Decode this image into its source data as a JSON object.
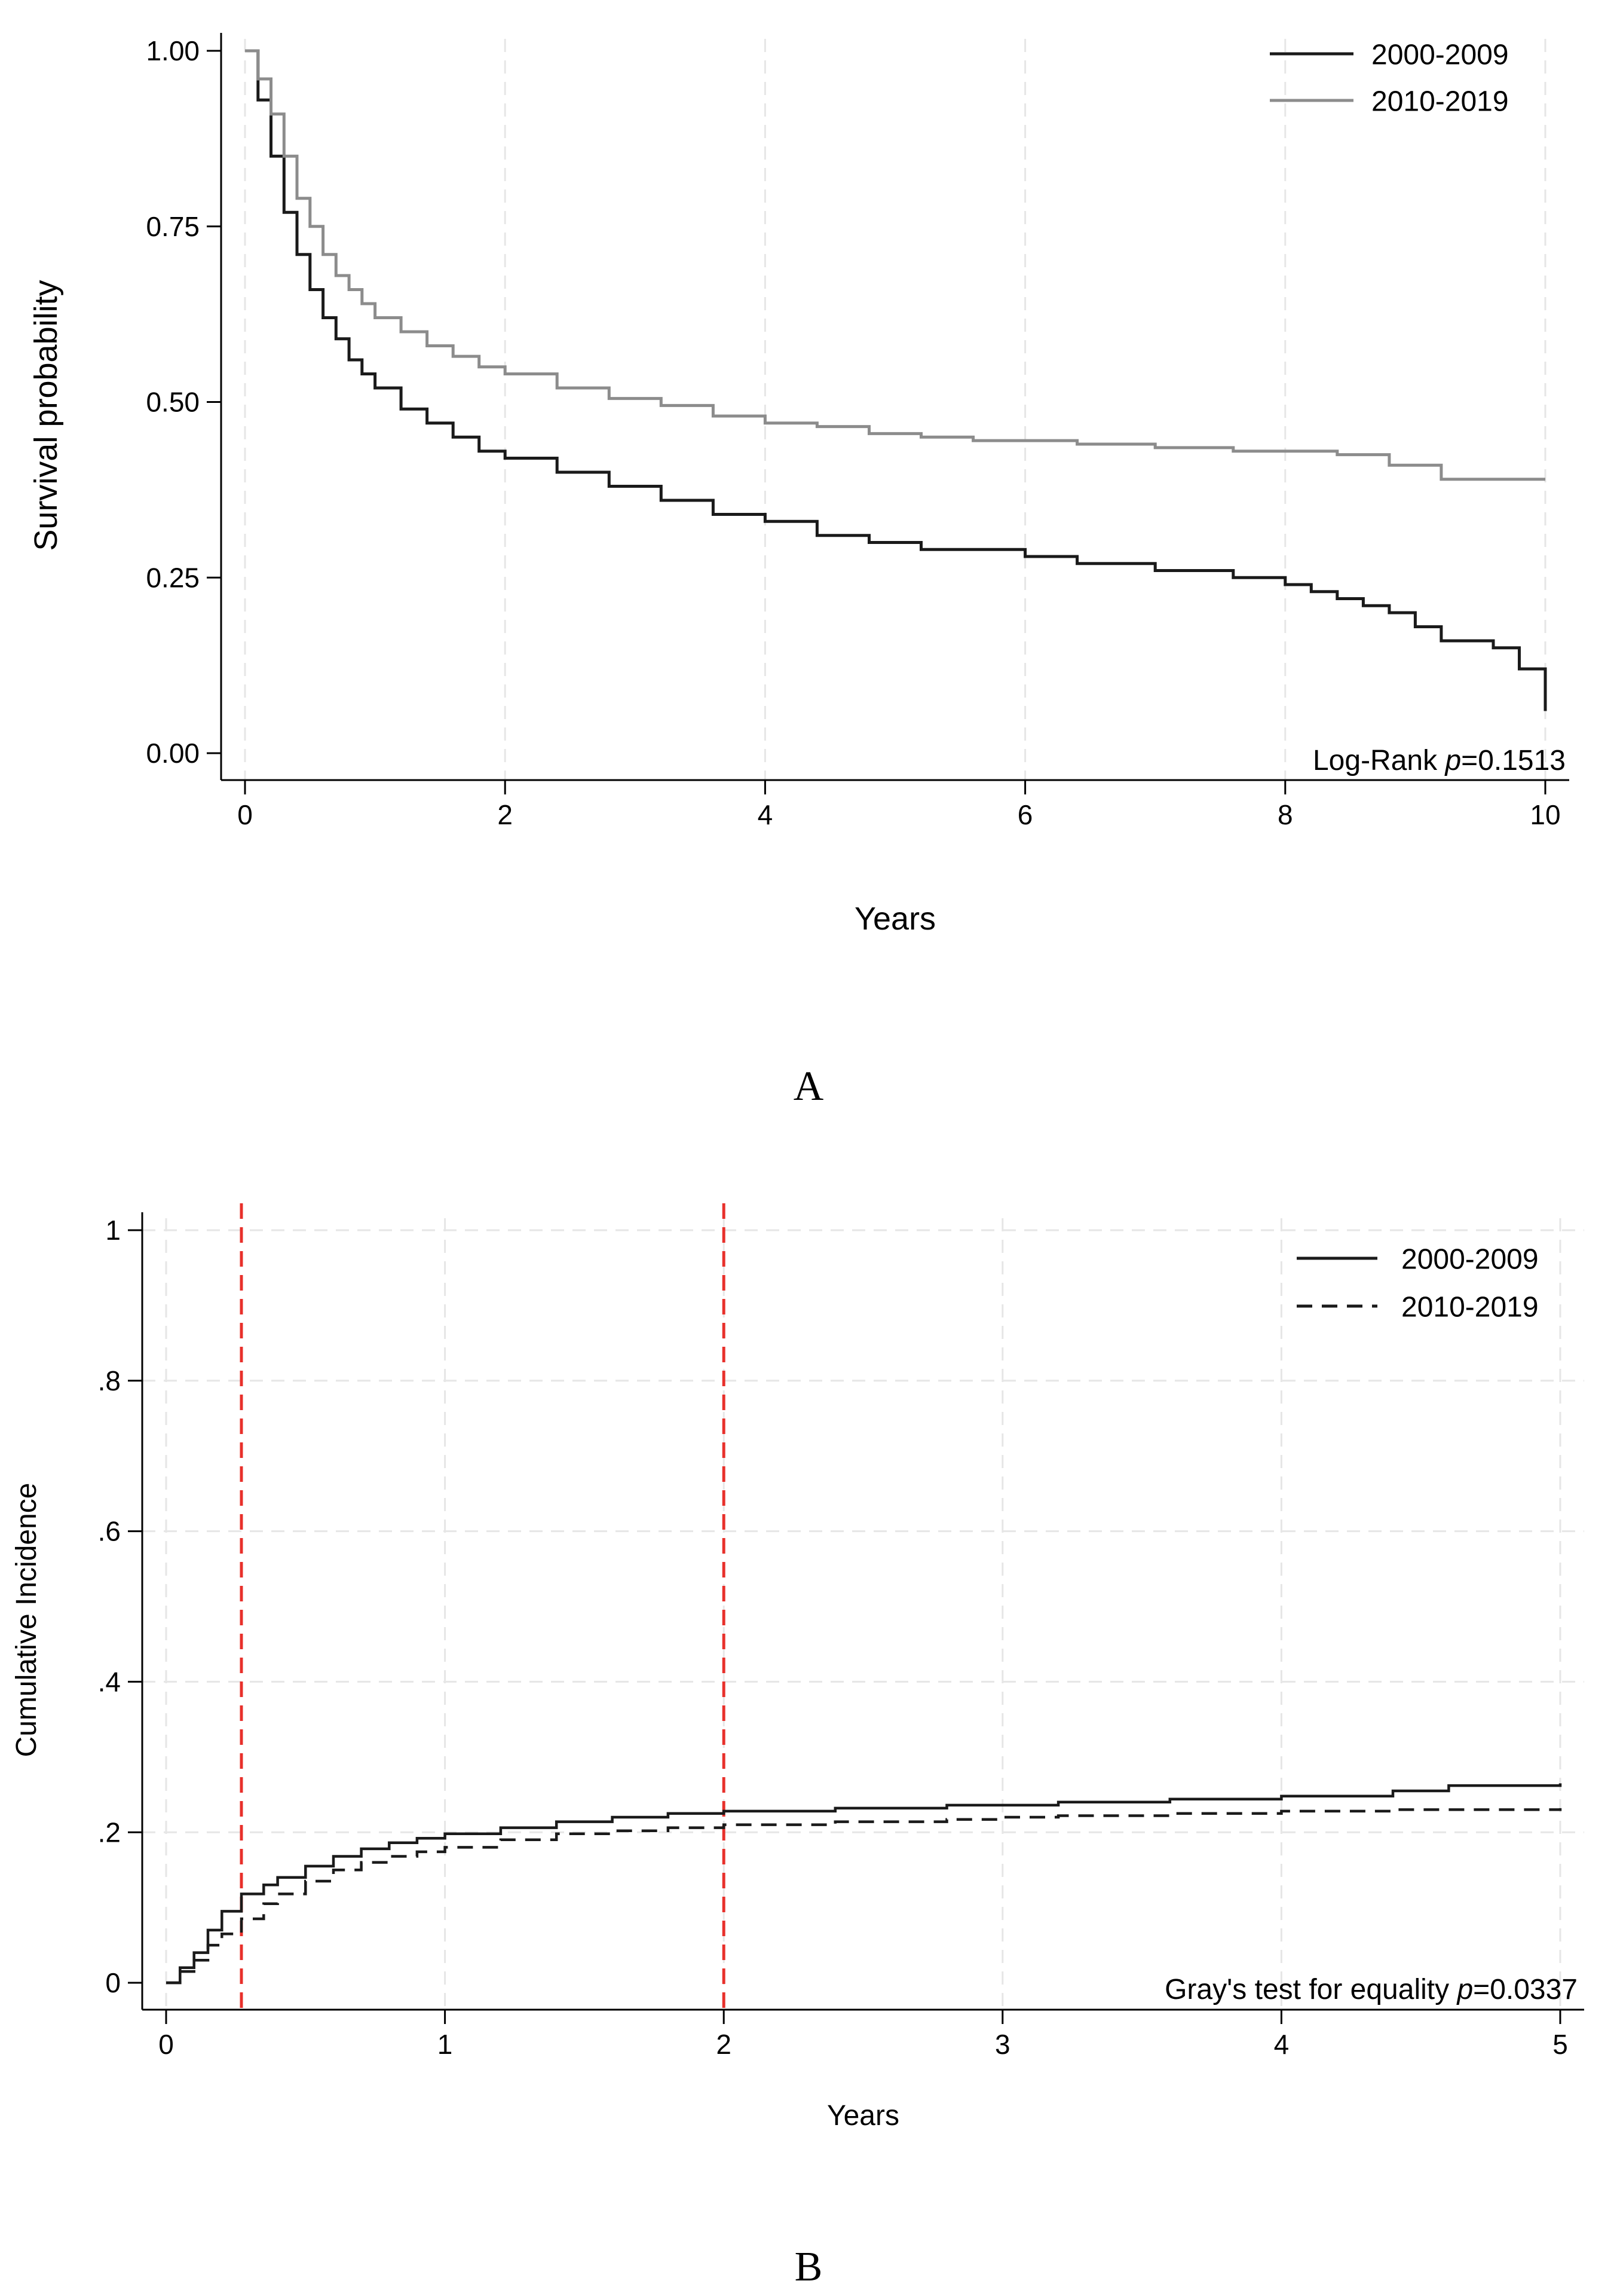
{
  "chart_data": [
    {
      "panel": "A",
      "type": "line",
      "step": true,
      "xlabel": "Years",
      "ylabel": "Survival probability",
      "xlim": [
        0,
        10
      ],
      "ylim": [
        0,
        1
      ],
      "xticks": [
        "0",
        "2",
        "4",
        "6",
        "8",
        "10"
      ],
      "yticks": [
        "0.00",
        "0.25",
        "0.50",
        "0.75",
        "1.00"
      ],
      "annotation": {
        "prefix": "Log-Rank ",
        "italic": "p",
        "suffix": "=0.1513"
      },
      "grid": "vertical dashed",
      "legend_position": "top-right",
      "series": [
        {
          "name": "2000-2009",
          "color": "#1a1a1a",
          "dash": "solid",
          "x": [
            0,
            0.1,
            0.2,
            0.3,
            0.4,
            0.5,
            0.6,
            0.7,
            0.8,
            0.9,
            1.0,
            1.2,
            1.4,
            1.6,
            1.8,
            2.0,
            2.4,
            2.8,
            3.2,
            3.6,
            4.0,
            4.4,
            4.8,
            5.2,
            5.6,
            6.0,
            6.4,
            7.0,
            7.6,
            8.0,
            8.2,
            8.4,
            8.6,
            8.8,
            9.0,
            9.2,
            9.4,
            9.6,
            9.8,
            10.0,
            10.0
          ],
          "y": [
            1.0,
            0.93,
            0.85,
            0.77,
            0.71,
            0.66,
            0.62,
            0.59,
            0.56,
            0.54,
            0.52,
            0.49,
            0.47,
            0.45,
            0.43,
            0.42,
            0.4,
            0.38,
            0.36,
            0.34,
            0.33,
            0.31,
            0.3,
            0.29,
            0.29,
            0.28,
            0.27,
            0.26,
            0.25,
            0.24,
            0.23,
            0.22,
            0.21,
            0.2,
            0.18,
            0.16,
            0.16,
            0.15,
            0.12,
            0.11,
            0.06
          ]
        },
        {
          "name": "2010-2019",
          "color": "#8c8c8c",
          "dash": "solid",
          "x": [
            0,
            0.1,
            0.2,
            0.3,
            0.4,
            0.5,
            0.6,
            0.7,
            0.8,
            0.9,
            1.0,
            1.2,
            1.4,
            1.6,
            1.8,
            2.0,
            2.4,
            2.8,
            3.2,
            3.6,
            4.0,
            4.4,
            4.8,
            5.2,
            5.6,
            6.0,
            6.4,
            7.0,
            7.6,
            8.0,
            8.4,
            8.8,
            9.0,
            9.2,
            9.4,
            9.6,
            9.8,
            10.0
          ],
          "y": [
            1.0,
            0.96,
            0.91,
            0.85,
            0.79,
            0.75,
            0.71,
            0.68,
            0.66,
            0.64,
            0.62,
            0.6,
            0.58,
            0.565,
            0.55,
            0.54,
            0.52,
            0.505,
            0.495,
            0.48,
            0.47,
            0.465,
            0.455,
            0.45,
            0.445,
            0.445,
            0.44,
            0.435,
            0.43,
            0.43,
            0.425,
            0.41,
            0.41,
            0.39,
            0.39,
            0.39,
            0.39,
            0.39
          ]
        }
      ]
    },
    {
      "panel": "B",
      "type": "line",
      "step": true,
      "xlabel": "Years",
      "ylabel": "Cumulative Incidence",
      "xlim": [
        0,
        5
      ],
      "ylim": [
        0,
        1
      ],
      "xticks": [
        "0",
        "1",
        "2",
        "3",
        "4",
        "5"
      ],
      "yticks": [
        "0",
        ".2",
        ".4",
        ".6",
        ".8",
        "1"
      ],
      "annotation": {
        "prefix": "Gray's test for equality ",
        "italic": "p",
        "suffix": "=0.0337"
      },
      "grid": "horizontal and vertical dashed",
      "legend_position": "top-right",
      "reference_lines_x": [
        0.27,
        2.0
      ],
      "reference_line_color": "#e8302b",
      "series": [
        {
          "name": "2000-2009",
          "color": "#1a1a1a",
          "dash": "solid",
          "x": [
            0,
            0.05,
            0.1,
            0.15,
            0.2,
            0.27,
            0.35,
            0.4,
            0.5,
            0.6,
            0.7,
            0.8,
            0.9,
            1.0,
            1.2,
            1.4,
            1.6,
            1.8,
            2.0,
            2.4,
            2.8,
            3.2,
            3.6,
            4.0,
            4.4,
            4.6,
            5.0
          ],
          "y": [
            0,
            0.02,
            0.04,
            0.07,
            0.095,
            0.118,
            0.13,
            0.14,
            0.155,
            0.168,
            0.178,
            0.186,
            0.192,
            0.198,
            0.206,
            0.214,
            0.22,
            0.225,
            0.228,
            0.232,
            0.236,
            0.24,
            0.244,
            0.248,
            0.255,
            0.262,
            0.265
          ]
        },
        {
          "name": "2010-2019",
          "color": "#1a1a1a",
          "dash": "dashed",
          "x": [
            0,
            0.05,
            0.1,
            0.15,
            0.2,
            0.27,
            0.35,
            0.4,
            0.5,
            0.6,
            0.7,
            0.8,
            0.9,
            1.0,
            1.2,
            1.4,
            1.6,
            1.8,
            2.0,
            2.4,
            2.8,
            3.0,
            3.2,
            3.6,
            4.0,
            4.4,
            5.0
          ],
          "y": [
            0,
            0.015,
            0.03,
            0.05,
            0.065,
            0.085,
            0.105,
            0.118,
            0.135,
            0.15,
            0.16,
            0.168,
            0.174,
            0.18,
            0.19,
            0.198,
            0.202,
            0.206,
            0.21,
            0.214,
            0.217,
            0.22,
            0.222,
            0.225,
            0.228,
            0.23,
            0.232
          ]
        }
      ]
    }
  ],
  "panel_labels": [
    "A",
    "B"
  ]
}
